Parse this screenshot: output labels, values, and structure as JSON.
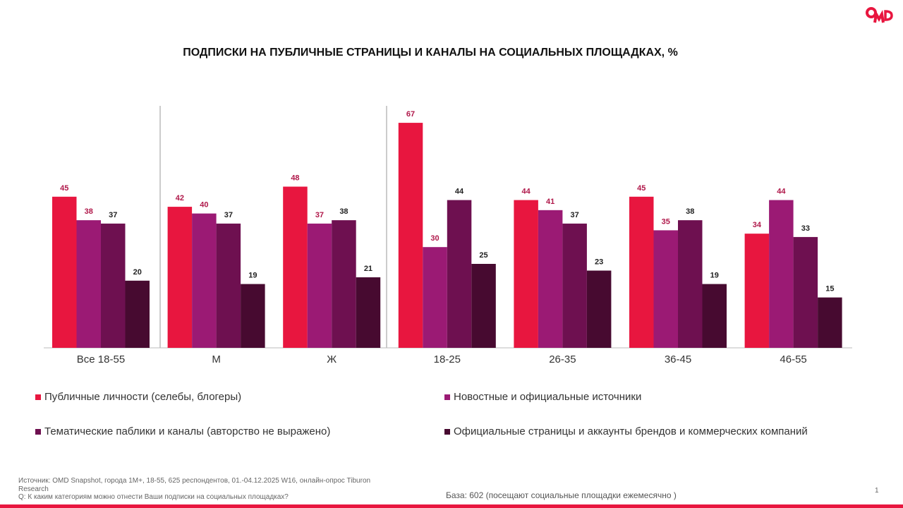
{
  "chart_data": {
    "type": "bar",
    "title": "ПОДПИСКИ НА ПУБЛИЧНЫЕ СТРАНИЦЫ И КАНАЛЫ  НА СОЦИАЛЬНЫХ ПЛОЩАДКАХ, %",
    "categories": [
      "Все 18-55",
      "М",
      "Ж",
      "18-25",
      "26-35",
      "36-45",
      "46-55"
    ],
    "series": [
      {
        "name": "Публичные личности (селебы, блогеры)",
        "color": "#e8163f",
        "label_color": "#b0184a",
        "values": [
          45,
          42,
          48,
          67,
          44,
          45,
          34
        ]
      },
      {
        "name": "Новостные и официальные источники",
        "color": "#9b1a74",
        "label_color": "#b0184a",
        "values": [
          38,
          40,
          37,
          30,
          41,
          35,
          44
        ]
      },
      {
        "name": "Тематические паблики и каналы (авторство не выражено)",
        "color": "#6e1050",
        "label_color": "#222222",
        "values": [
          37,
          37,
          38,
          44,
          37,
          38,
          33
        ]
      },
      {
        "name": "Официальные страницы и аккаунты брендов и коммерческих компаний",
        "color": "#470a30",
        "label_color": "#222222",
        "values": [
          20,
          19,
          21,
          25,
          23,
          19,
          15
        ]
      }
    ],
    "ylim": [
      0,
      70
    ],
    "grid": false,
    "legend": "bottom"
  },
  "logo": "OMD",
  "footnote": {
    "source": "Источник: OMD Snapshot, города 1M+, 18-55, 625  респондентов, 01.-04.12.2025 W16, онлайн-опрос Tiburon Research",
    "question": "Q: К каким категориям можно отнести Ваши подписки на социальных площадках?"
  },
  "base": "База: 602 (посещают социальные площадки ежемесячно )",
  "page_number": "1"
}
